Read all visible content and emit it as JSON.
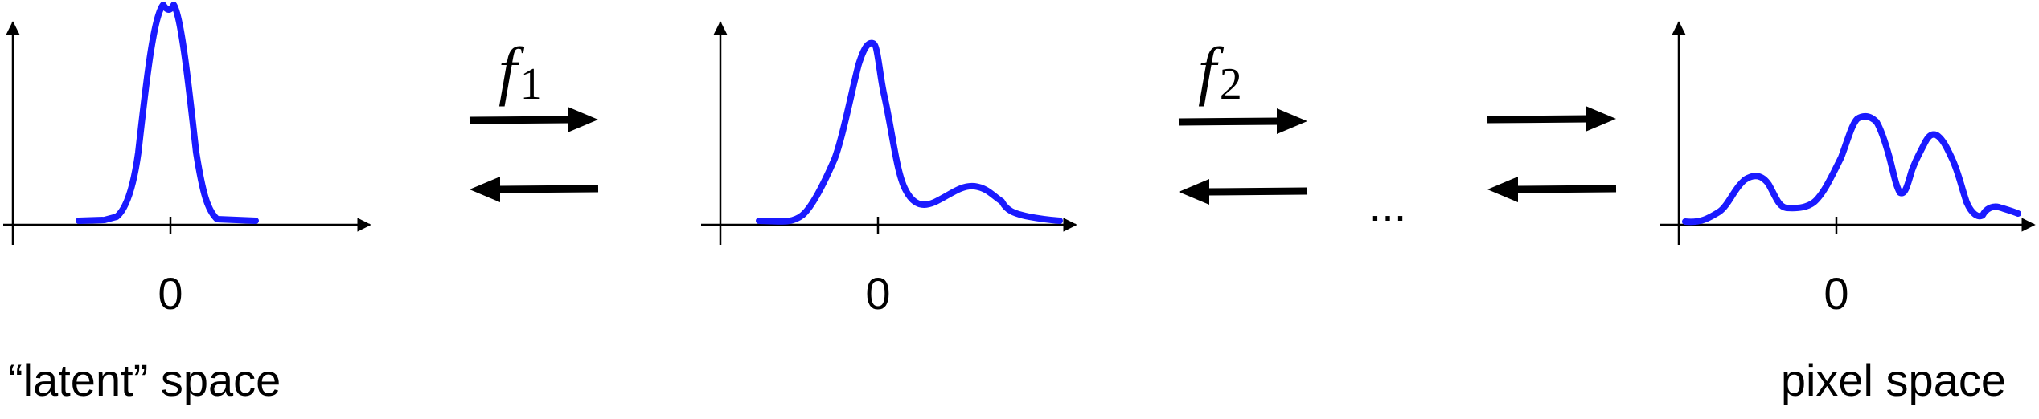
{
  "panels": [
    {
      "tick_label": "0",
      "caption": "“latent” space"
    },
    {
      "tick_label": "0",
      "caption": ""
    },
    {
      "tick_label": "0",
      "caption": "pixel space"
    }
  ],
  "transforms": [
    {
      "symbol": "f",
      "subscript": "1"
    },
    {
      "symbol": "f",
      "subscript": "2"
    }
  ],
  "ellipsis": "...",
  "colors": {
    "curve": "#1a1aff",
    "axis": "#000000",
    "arrow": "#000000"
  }
}
